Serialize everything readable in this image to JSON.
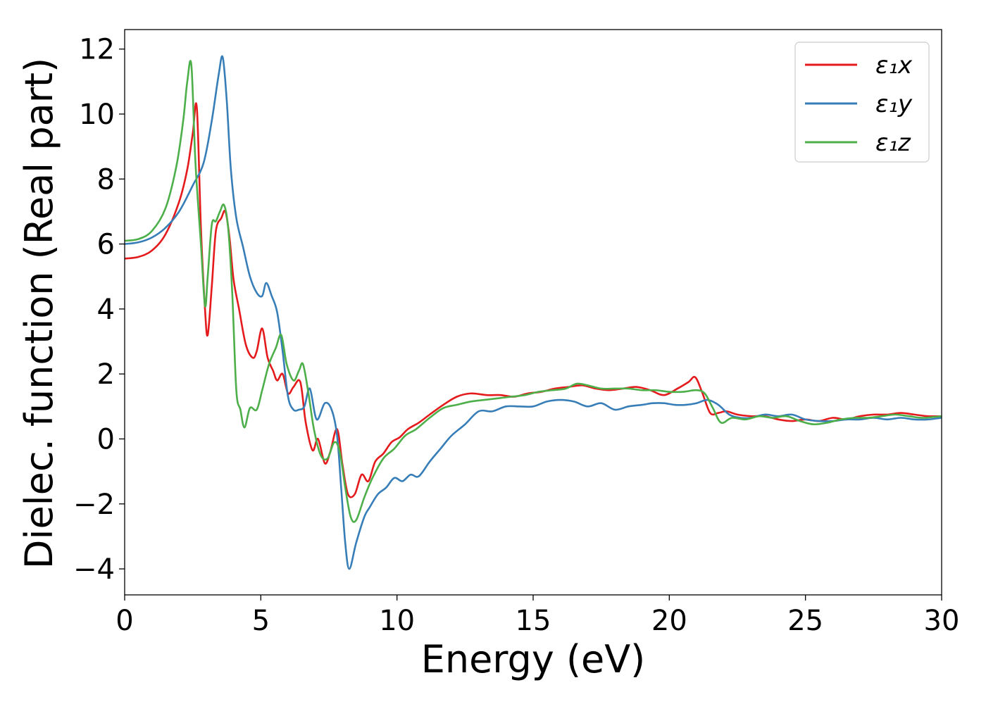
{
  "chart_data": {
    "type": "line",
    "title": "",
    "xlabel": "Energy (eV)",
    "ylabel": "Dielec. function (Real part)",
    "xlim": [
      0,
      30
    ],
    "ylim": [
      -4.8,
      12.6
    ],
    "xticks": [
      0,
      5,
      10,
      15,
      20,
      25,
      30
    ],
    "xtick_labels": [
      "0",
      "5",
      "10",
      "15",
      "20",
      "25",
      "30"
    ],
    "yticks": [
      -4,
      -2,
      0,
      2,
      4,
      6,
      8,
      10,
      12
    ],
    "ytick_labels": [
      "−4",
      "−2",
      "0",
      "2",
      "4",
      "6",
      "8",
      "10",
      "12"
    ],
    "grid": false,
    "legend_position": "top-right",
    "series": [
      {
        "name": "ε₁x",
        "color": "#e41a1c",
        "x": [
          0,
          0.5,
          1.0,
          1.5,
          2.0,
          2.3,
          2.5,
          2.65,
          2.8,
          2.95,
          3.05,
          3.2,
          3.35,
          3.55,
          3.7,
          3.85,
          4.0,
          4.2,
          4.45,
          4.7,
          4.85,
          5.05,
          5.25,
          5.45,
          5.6,
          5.8,
          6.0,
          6.2,
          6.45,
          6.65,
          6.9,
          7.1,
          7.35,
          7.55,
          7.8,
          8.0,
          8.2,
          8.45,
          8.7,
          8.95,
          9.2,
          9.5,
          9.8,
          10.1,
          10.4,
          10.8,
          11.2,
          11.7,
          12.2,
          12.7,
          13.3,
          13.8,
          14.3,
          14.8,
          15.3,
          15.8,
          16.3,
          16.8,
          17.3,
          17.8,
          18.3,
          18.8,
          19.3,
          19.8,
          20.3,
          20.7,
          20.95,
          21.2,
          21.5,
          21.8,
          22.1,
          22.5,
          23.0,
          23.5,
          24.0,
          24.5,
          25.0,
          25.5,
          26.0,
          26.5,
          27.0,
          27.5,
          28.0,
          28.5,
          29.0,
          29.5,
          30.0
        ],
        "values": [
          5.55,
          5.6,
          5.8,
          6.3,
          7.3,
          8.3,
          9.4,
          10.2,
          6.5,
          4.0,
          3.2,
          4.7,
          6.4,
          6.8,
          7.0,
          6.2,
          4.9,
          4.0,
          2.9,
          2.5,
          2.7,
          3.4,
          2.5,
          2.1,
          1.8,
          2.0,
          1.4,
          1.6,
          1.75,
          0.5,
          -0.35,
          0.0,
          -0.75,
          -0.4,
          0.3,
          -0.8,
          -1.7,
          -1.7,
          -1.1,
          -1.3,
          -0.7,
          -0.45,
          -0.1,
          0.05,
          0.3,
          0.5,
          0.75,
          1.05,
          1.3,
          1.4,
          1.35,
          1.35,
          1.3,
          1.4,
          1.45,
          1.55,
          1.6,
          1.65,
          1.55,
          1.5,
          1.55,
          1.6,
          1.5,
          1.35,
          1.55,
          1.75,
          1.9,
          1.45,
          0.8,
          0.8,
          0.85,
          0.75,
          0.7,
          0.7,
          0.6,
          0.55,
          0.6,
          0.55,
          0.65,
          0.6,
          0.7,
          0.75,
          0.75,
          0.8,
          0.75,
          0.7,
          0.7
        ]
      },
      {
        "name": "ε₁y",
        "color": "#377eb8",
        "x": [
          0,
          0.5,
          1.0,
          1.5,
          2.0,
          2.5,
          2.9,
          3.2,
          3.45,
          3.6,
          3.75,
          3.9,
          4.1,
          4.35,
          4.6,
          4.85,
          5.05,
          5.2,
          5.4,
          5.6,
          5.8,
          6.0,
          6.2,
          6.4,
          6.6,
          6.8,
          7.05,
          7.35,
          7.6,
          7.8,
          7.95,
          8.1,
          8.25,
          8.5,
          8.8,
          9.0,
          9.3,
          9.6,
          9.9,
          10.2,
          10.5,
          10.8,
          11.2,
          11.6,
          12.0,
          12.5,
          13.0,
          13.5,
          14.0,
          14.5,
          15.0,
          15.5,
          16.0,
          16.5,
          17.0,
          17.5,
          18.0,
          18.5,
          19.0,
          19.4,
          19.8,
          20.2,
          20.6,
          21.0,
          21.4,
          21.8,
          22.2,
          22.6,
          23.0,
          23.5,
          24.0,
          24.5,
          25.0,
          25.5,
          26.0,
          26.5,
          27.0,
          27.5,
          28.0,
          28.5,
          29.0,
          29.5,
          30.0
        ],
        "values": [
          6.0,
          6.05,
          6.2,
          6.5,
          7.0,
          7.8,
          8.5,
          9.8,
          11.2,
          11.75,
          10.4,
          8.3,
          6.8,
          5.9,
          5.0,
          4.5,
          4.4,
          4.8,
          4.4,
          3.9,
          2.7,
          1.3,
          0.9,
          0.9,
          1.0,
          1.55,
          0.6,
          1.1,
          0.9,
          0.1,
          -1.5,
          -3.2,
          -4.0,
          -3.2,
          -2.4,
          -2.1,
          -1.7,
          -1.5,
          -1.2,
          -1.3,
          -1.1,
          -1.15,
          -0.7,
          -0.3,
          0.1,
          0.45,
          0.85,
          0.85,
          1.0,
          1.0,
          1.0,
          1.15,
          1.2,
          1.15,
          1.0,
          1.1,
          0.9,
          1.0,
          1.05,
          1.1,
          1.1,
          1.05,
          1.05,
          1.1,
          1.2,
          1.05,
          0.75,
          0.65,
          0.65,
          0.75,
          0.7,
          0.75,
          0.6,
          0.55,
          0.55,
          0.6,
          0.6,
          0.65,
          0.6,
          0.65,
          0.6,
          0.6,
          0.65
        ]
      },
      {
        "name": "ε₁z",
        "color": "#4daf4a",
        "x": [
          0,
          0.5,
          1.0,
          1.5,
          1.9,
          2.15,
          2.3,
          2.45,
          2.6,
          2.8,
          2.95,
          3.05,
          3.2,
          3.35,
          3.5,
          3.65,
          3.8,
          3.95,
          4.1,
          4.25,
          4.4,
          4.6,
          4.85,
          5.05,
          5.3,
          5.55,
          5.75,
          5.95,
          6.2,
          6.4,
          6.55,
          6.75,
          6.95,
          7.2,
          7.45,
          7.7,
          7.9,
          8.1,
          8.3,
          8.5,
          8.8,
          9.1,
          9.5,
          9.9,
          10.3,
          10.7,
          11.2,
          11.7,
          12.2,
          12.7,
          13.2,
          13.7,
          14.2,
          14.7,
          15.2,
          15.7,
          16.2,
          16.6,
          17.0,
          17.5,
          18.0,
          18.5,
          19.0,
          19.5,
          20.0,
          20.5,
          21.0,
          21.3,
          21.6,
          21.9,
          22.3,
          22.8,
          23.3,
          23.8,
          24.3,
          24.8,
          25.3,
          25.8,
          26.3,
          26.8,
          27.3,
          27.8,
          28.3,
          28.8,
          29.3,
          30.0
        ],
        "values": [
          6.1,
          6.15,
          6.4,
          7.1,
          8.4,
          9.8,
          11.0,
          11.5,
          8.5,
          6.0,
          4.1,
          5.0,
          6.6,
          6.7,
          7.0,
          7.2,
          6.5,
          4.5,
          1.5,
          0.9,
          0.35,
          0.95,
          0.9,
          1.5,
          2.3,
          2.8,
          3.2,
          2.3,
          1.8,
          2.1,
          2.3,
          1.4,
          0.3,
          -0.5,
          -0.6,
          -0.1,
          -0.4,
          -1.5,
          -2.4,
          -2.5,
          -1.8,
          -1.2,
          -0.6,
          -0.3,
          0.1,
          0.3,
          0.65,
          0.95,
          1.05,
          1.15,
          1.2,
          1.25,
          1.3,
          1.35,
          1.45,
          1.5,
          1.55,
          1.7,
          1.65,
          1.55,
          1.55,
          1.55,
          1.5,
          1.5,
          1.45,
          1.45,
          1.5,
          1.4,
          0.95,
          0.5,
          0.65,
          0.6,
          0.7,
          0.65,
          0.7,
          0.55,
          0.45,
          0.5,
          0.6,
          0.65,
          0.65,
          0.7,
          0.75,
          0.7,
          0.65,
          0.7
        ]
      }
    ]
  }
}
